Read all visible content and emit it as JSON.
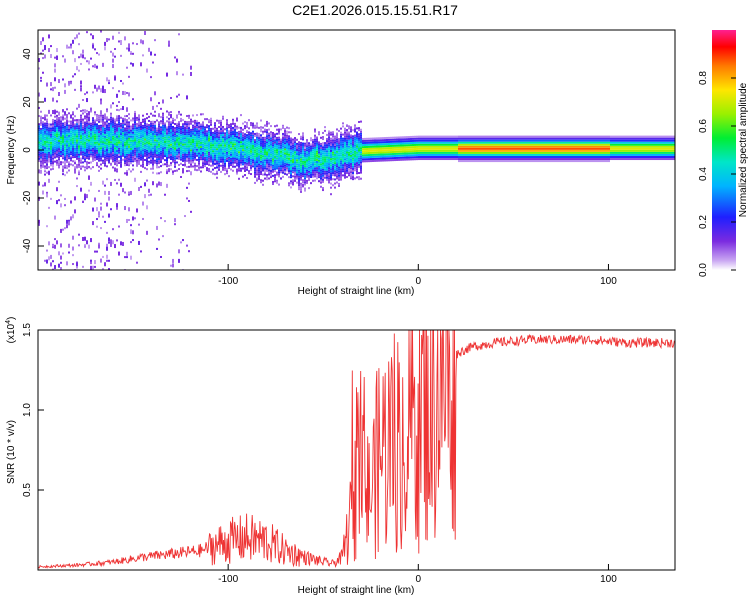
{
  "title": "C2E1.2026.015.15.51.R17",
  "chart_data": [
    {
      "type": "heatmap",
      "name": "spectrogram",
      "xlabel": "Height of straight line (km)",
      "ylabel": "Frequency (Hz)",
      "xlim": [
        -200,
        135
      ],
      "ylim": [
        -50,
        50
      ],
      "xticks": [
        -100,
        0,
        100
      ],
      "xtick_labels": [
        "-100",
        "0",
        "100"
      ],
      "yticks": [
        -40,
        -20,
        0,
        20,
        40
      ],
      "ytick_labels": [
        "-40",
        "-20",
        "0",
        "20",
        "40"
      ],
      "ridge_frequency_profile": {
        "x": [
          -200,
          -150,
          -100,
          -80,
          -60,
          -40,
          -30,
          0,
          20,
          50,
          100,
          135
        ],
        "y": [
          4,
          4,
          2,
          -1,
          -4,
          -2,
          0,
          1,
          1,
          1,
          1,
          1
        ]
      },
      "colorbar": {
        "label": "Normalized spectral amplitude",
        "range": [
          0,
          1
        ],
        "ticks": [
          0.0,
          0.2,
          0.4,
          0.6,
          0.8
        ],
        "tick_labels": [
          "0.0",
          "0.2",
          "0.4",
          "0.6",
          "0.8"
        ]
      }
    },
    {
      "type": "line",
      "name": "snr",
      "xlabel": "Height of straight line (km)",
      "ylabel": "SNR (10 * v/v)",
      "scale_label": "(x10",
      "scale_exponent": "4",
      "xlim": [
        -200,
        135
      ],
      "ylim": [
        0,
        1.5
      ],
      "xticks": [
        -100,
        0,
        100
      ],
      "xtick_labels": [
        "-100",
        "0",
        "100"
      ],
      "yticks": [
        0.5,
        1.0,
        1.5
      ],
      "ytick_labels": [
        "0.5",
        "1.0",
        "1.5"
      ],
      "series": [
        {
          "name": "SNR",
          "color": "#ee3333",
          "x": [
            -200,
            -180,
            -160,
            -145,
            -130,
            -115,
            -100,
            -90,
            -80,
            -70,
            -60,
            -50,
            -45,
            -40,
            -35,
            -32,
            -30,
            -28,
            -25,
            -22,
            -20,
            -15,
            -10,
            -5,
            0,
            5,
            10,
            15,
            20,
            25,
            30,
            40,
            50,
            60,
            70,
            80,
            90,
            100,
            110,
            120,
            135
          ],
          "values": [
            0.02,
            0.03,
            0.05,
            0.08,
            0.1,
            0.12,
            0.18,
            0.2,
            0.18,
            0.12,
            0.08,
            0.05,
            0.04,
            0.08,
            0.35,
            0.55,
            0.7,
            0.45,
            0.5,
            0.65,
            0.75,
            0.8,
            0.85,
            0.95,
            1.0,
            1.05,
            1.15,
            1.25,
            1.35,
            1.38,
            1.4,
            1.42,
            1.43,
            1.44,
            1.44,
            1.44,
            1.44,
            1.43,
            1.42,
            1.42,
            1.42
          ]
        }
      ]
    }
  ],
  "colors": {
    "snr_line": "#ee3333",
    "background": "#ffffff"
  }
}
